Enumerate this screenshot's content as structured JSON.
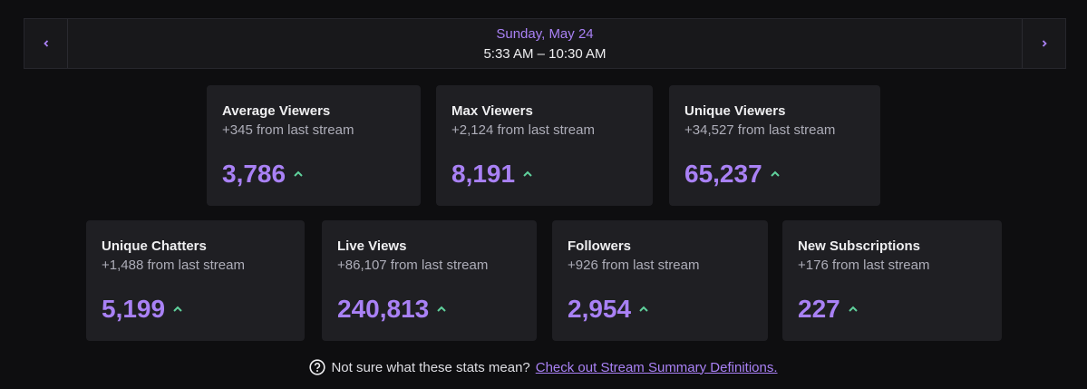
{
  "header": {
    "date": "Sunday, May 24",
    "time": "5:33 AM – 10:30 AM"
  },
  "cards": [
    {
      "title": "Average Viewers",
      "delta": "+345 from last stream",
      "value": "3,786"
    },
    {
      "title": "Max Viewers",
      "delta": "+2,124 from last stream",
      "value": "8,191"
    },
    {
      "title": "Unique Viewers",
      "delta": "+34,527 from last stream",
      "value": "65,237"
    },
    {
      "title": "Unique Chatters",
      "delta": "+1,488 from last stream",
      "value": "5,199"
    },
    {
      "title": "Live Views",
      "delta": "+86,107 from last stream",
      "value": "240,813"
    },
    {
      "title": "Followers",
      "delta": "+926 from last stream",
      "value": "2,954"
    },
    {
      "title": "New Subscriptions",
      "delta": "+176 from last stream",
      "value": "227"
    }
  ],
  "footer": {
    "text": "Not sure what these stats mean?",
    "link": "Check out Stream Summary Definitions."
  }
}
